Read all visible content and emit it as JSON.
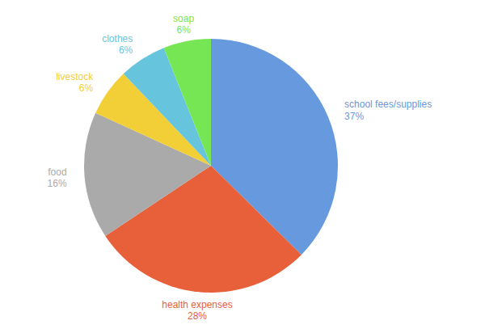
{
  "chart_data": {
    "type": "pie",
    "categories": [
      "school fees/supplies",
      "health expenses",
      "food",
      "livestock",
      "clothes",
      "soap"
    ],
    "values": [
      37,
      28,
      16,
      6,
      6,
      6
    ],
    "value_labels": [
      "37%",
      "28%",
      "16%",
      "6%",
      "6%",
      "6%"
    ],
    "colors": [
      "#6699dd",
      "#e8603a",
      "#aaaaaa",
      "#f2cf36",
      "#66c5dc",
      "#77e655"
    ],
    "data_labels": true
  }
}
